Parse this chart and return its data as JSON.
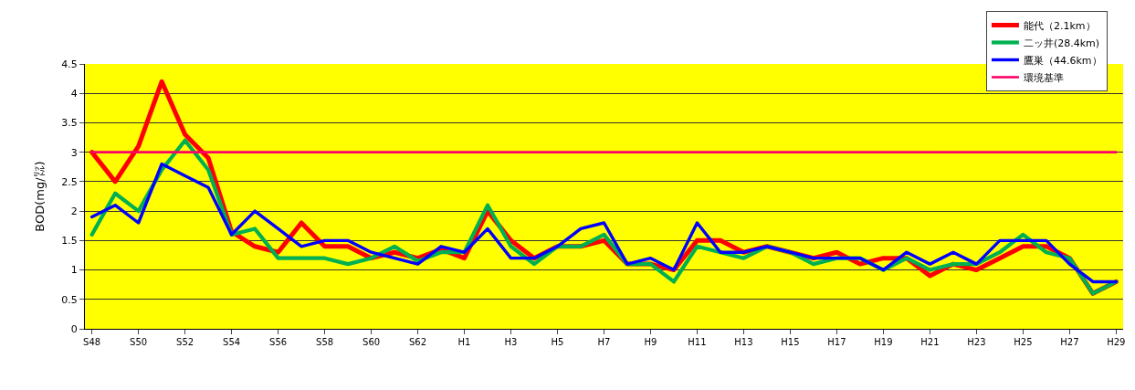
{
  "chart_data": {
    "type": "line",
    "ylabel": "BOD(mg/㍑)",
    "categories": [
      "S48",
      null,
      "S50",
      null,
      "S52",
      null,
      "S54",
      null,
      "S56",
      null,
      "S58",
      null,
      "S60",
      null,
      "S62",
      null,
      "H1",
      null,
      "H3",
      null,
      "H5",
      null,
      "H7",
      null,
      "H9",
      null,
      "H11",
      null,
      "H13",
      null,
      "H15",
      null,
      "H17",
      null,
      "H19",
      null,
      "H21",
      null,
      "H23",
      null,
      "H25",
      null,
      "H27",
      null,
      "H29"
    ],
    "series": [
      {
        "name": "能代（2.1km）",
        "color": "#ff0000",
        "values": [
          3.0,
          2.5,
          3.1,
          4.2,
          3.3,
          2.9,
          1.65,
          1.4,
          1.3,
          1.8,
          1.4,
          1.4,
          1.2,
          1.3,
          1.2,
          1.35,
          1.2,
          2.0,
          1.5,
          1.2,
          1.4,
          1.4,
          1.5,
          1.1,
          1.1,
          1.0,
          1.5,
          1.5,
          1.3,
          1.4,
          1.3,
          1.2,
          1.3,
          1.1,
          1.2,
          1.2,
          0.9,
          1.1,
          1.0,
          1.2,
          1.4,
          1.4,
          1.2,
          0.6,
          0.8
        ]
      },
      {
        "name": "二ッ井(28.4km)",
        "color": "#00b050",
        "values": [
          1.6,
          2.3,
          2.0,
          2.7,
          3.2,
          2.7,
          1.6,
          1.7,
          1.2,
          1.2,
          1.2,
          1.1,
          1.2,
          1.4,
          1.15,
          1.3,
          1.3,
          2.1,
          1.4,
          1.1,
          1.4,
          1.4,
          1.6,
          1.1,
          1.1,
          0.8,
          1.4,
          1.3,
          1.2,
          1.4,
          1.3,
          1.1,
          1.2,
          1.2,
          1.0,
          1.2,
          1.0,
          1.1,
          1.1,
          1.3,
          1.6,
          1.3,
          1.2,
          0.6,
          0.8
        ]
      },
      {
        "name": "鷹巣（44.6km）",
        "color": "#0000ff",
        "values": [
          1.9,
          2.1,
          1.8,
          2.8,
          2.6,
          2.4,
          1.6,
          2.0,
          1.7,
          1.4,
          1.5,
          1.5,
          1.3,
          1.2,
          1.1,
          1.4,
          1.3,
          1.7,
          1.2,
          1.2,
          1.4,
          1.7,
          1.8,
          1.1,
          1.2,
          1.0,
          1.8,
          1.3,
          1.3,
          1.4,
          1.3,
          1.2,
          1.2,
          1.2,
          1.0,
          1.3,
          1.1,
          1.3,
          1.1,
          1.5,
          1.5,
          1.5,
          1.1,
          0.8,
          0.8
        ]
      },
      {
        "name": "環境基準",
        "color": "#ff0066",
        "values": [
          3,
          3,
          3,
          3,
          3,
          3,
          3,
          3,
          3,
          3,
          3,
          3,
          3,
          3,
          3,
          3,
          3,
          3,
          3,
          3,
          3,
          3,
          3,
          3,
          3,
          3,
          3,
          3,
          3,
          3,
          3,
          3,
          3,
          3,
          3,
          3,
          3,
          3,
          3,
          3,
          3,
          3,
          3,
          3,
          3
        ]
      }
    ],
    "ylim": [
      0,
      4.5
    ],
    "yticks": [
      0,
      0.5,
      1,
      1.5,
      2,
      2.5,
      3,
      3.5,
      4,
      4.5
    ],
    "grid": "y",
    "legend": "top right",
    "marker": "none",
    "line_style": "solid"
  }
}
